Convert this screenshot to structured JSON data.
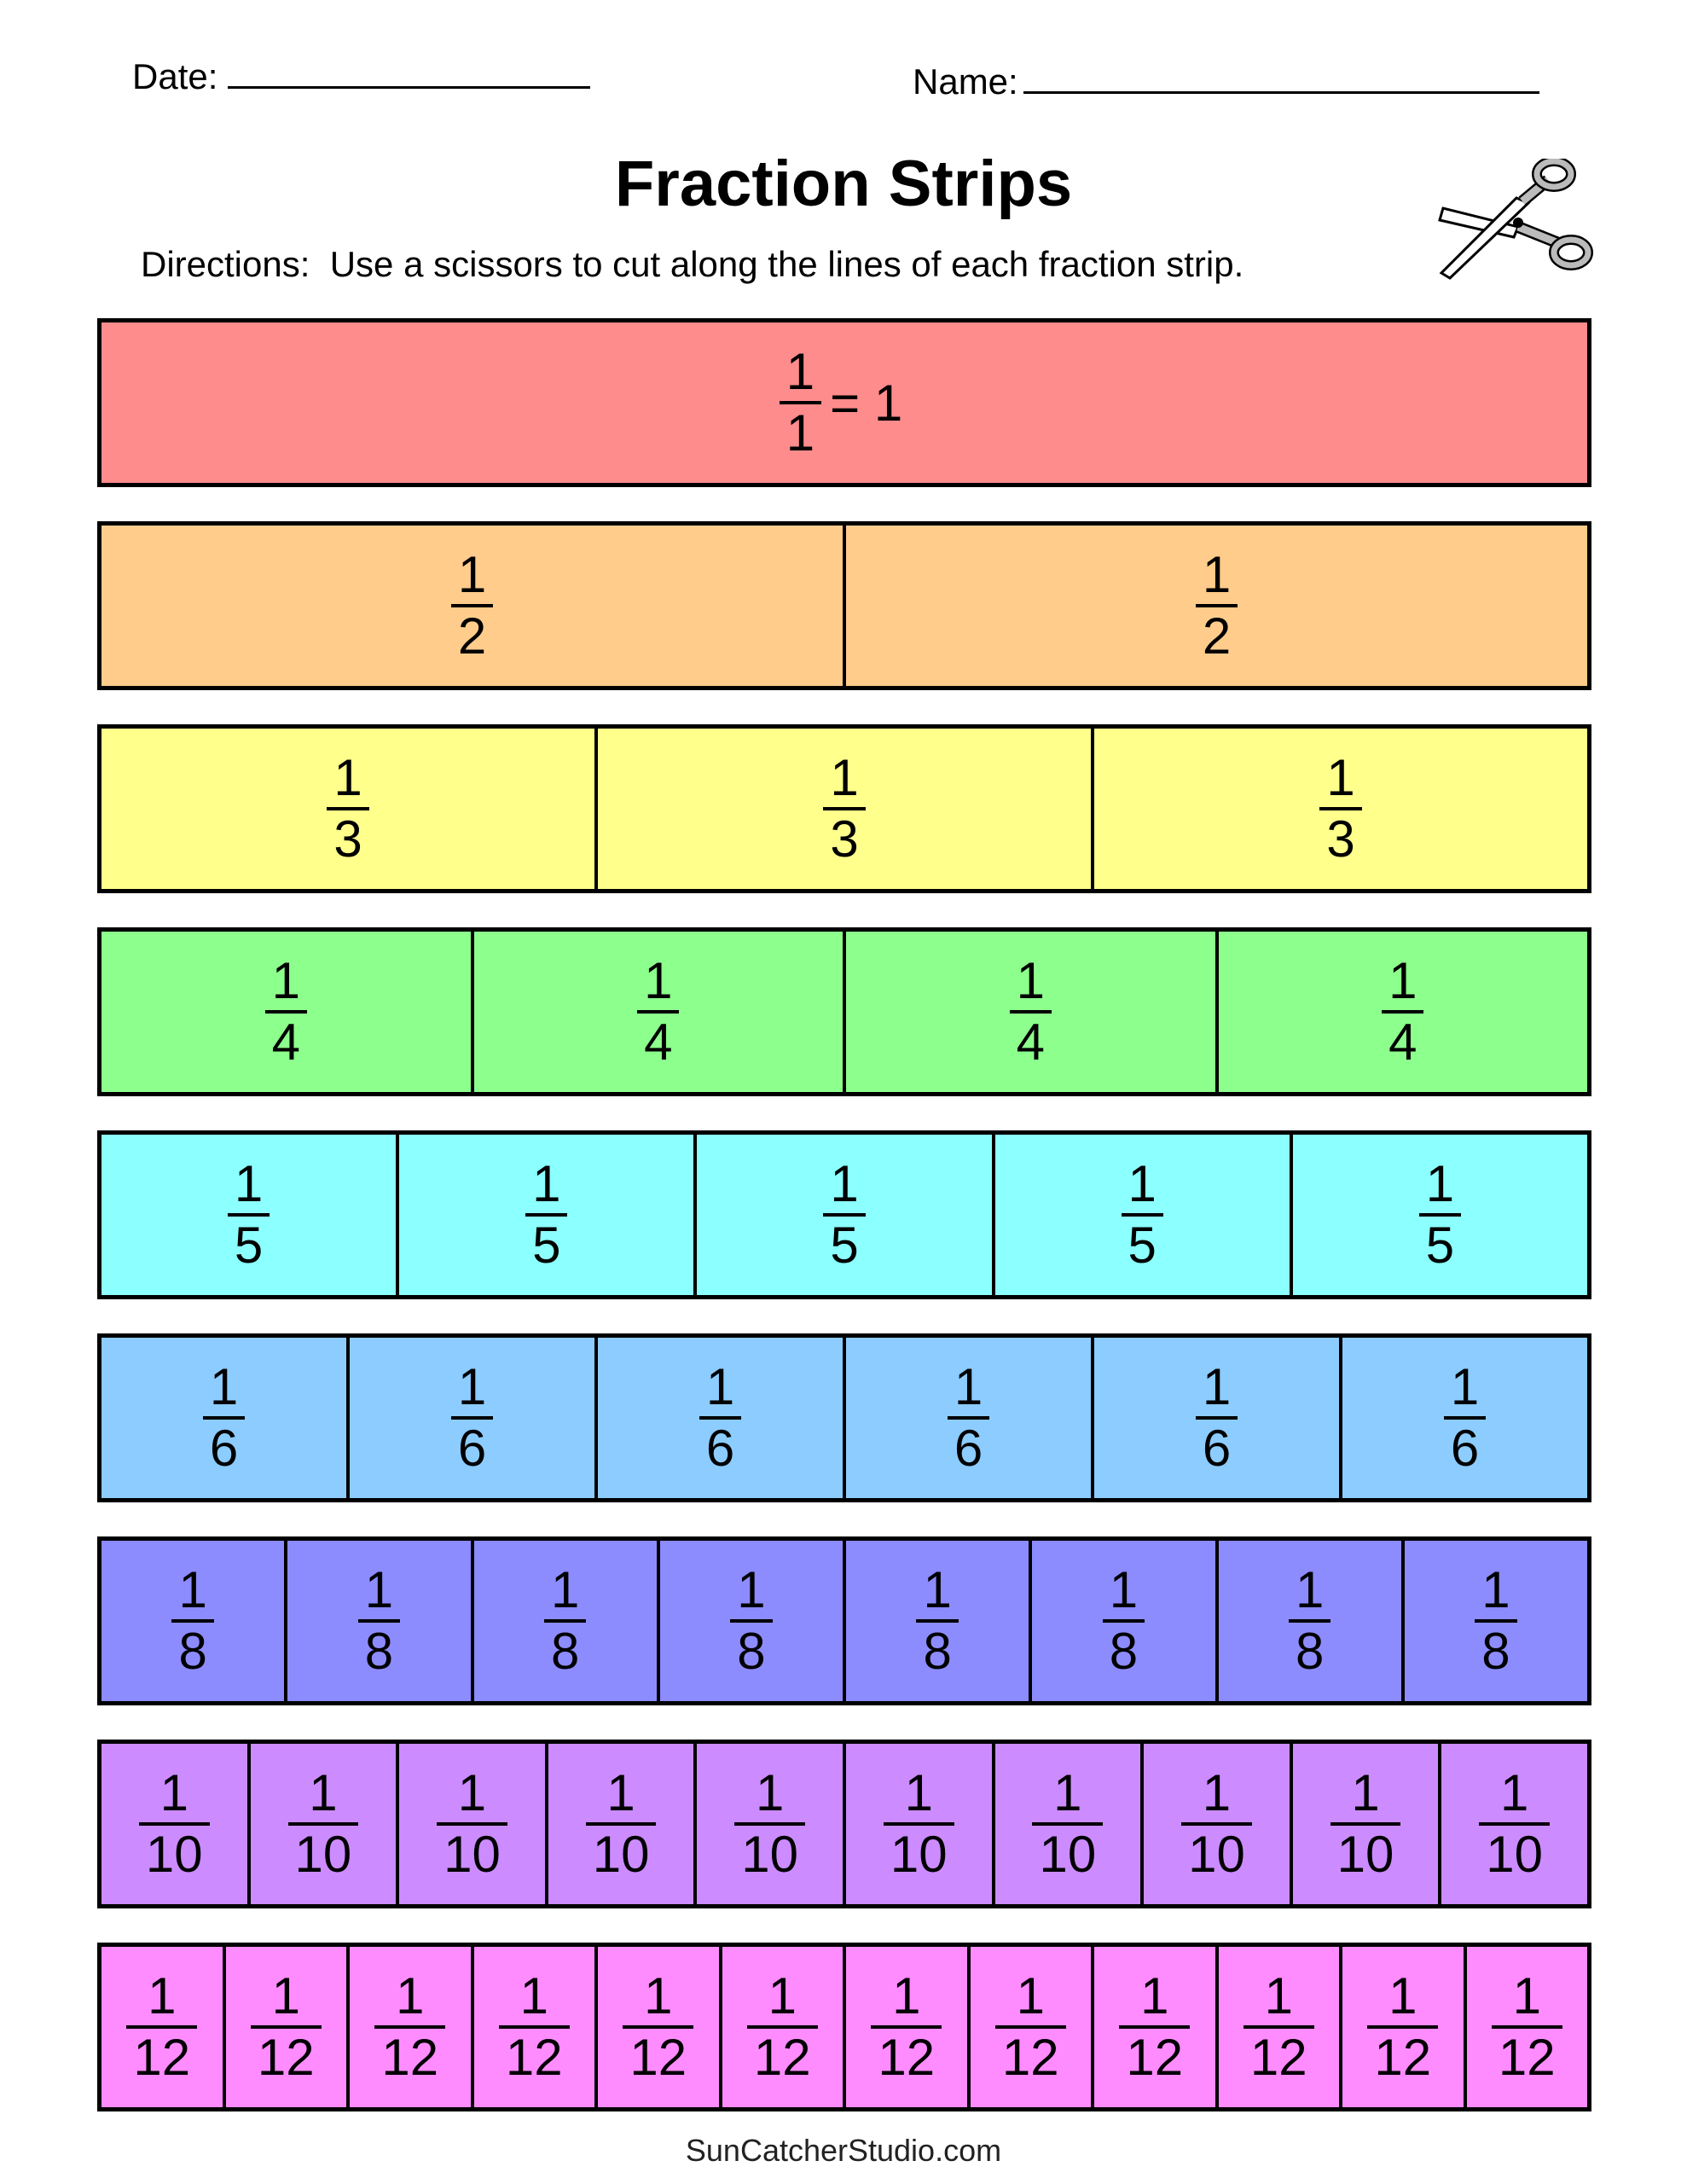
{
  "header": {
    "date_label": "Date:",
    "name_label": "Name:"
  },
  "title": "Fraction Strips",
  "directions": "Directions:  Use a scissors to cut along the lines of each fraction strip.",
  "strips": [
    {
      "denominator": 1,
      "numerator": "1",
      "den_label": "1",
      "suffix": "= 1",
      "color": "#FF8C8C"
    },
    {
      "denominator": 2,
      "numerator": "1",
      "den_label": "2",
      "color": "#FFCC8C"
    },
    {
      "denominator": 3,
      "numerator": "1",
      "den_label": "3",
      "color": "#FFFF8C"
    },
    {
      "denominator": 4,
      "numerator": "1",
      "den_label": "4",
      "color": "#8CFF8C"
    },
    {
      "denominator": 5,
      "numerator": "1",
      "den_label": "5",
      "color": "#8CFFFF"
    },
    {
      "denominator": 6,
      "numerator": "1",
      "den_label": "6",
      "color": "#8CCCFF"
    },
    {
      "denominator": 8,
      "numerator": "1",
      "den_label": "8",
      "color": "#8C8CFF"
    },
    {
      "denominator": 10,
      "numerator": "1",
      "den_label": "10",
      "color": "#CC8CFF"
    },
    {
      "denominator": 12,
      "numerator": "1",
      "den_label": "12",
      "color": "#FF8CFF"
    }
  ],
  "footer": "SunCatcherStudio.com",
  "icons": {
    "scissors": "scissors-icon"
  }
}
